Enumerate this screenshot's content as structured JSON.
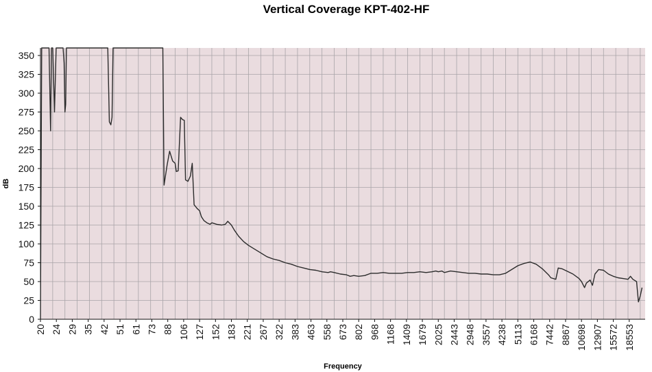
{
  "chart_data": {
    "type": "line",
    "title": "Vertical Coverage KPT-402-HF",
    "xlabel": "Frequency",
    "ylabel": "dB",
    "ylim": [
      0,
      360
    ],
    "yticks": [
      0,
      25,
      50,
      75,
      100,
      125,
      150,
      175,
      200,
      225,
      250,
      275,
      300,
      325,
      350
    ],
    "x_tick_labels": [
      "20",
      "24",
      "29",
      "35",
      "42",
      "51",
      "61",
      "73",
      "88",
      "106",
      "127",
      "152",
      "183",
      "221",
      "267",
      "322",
      "383",
      "463",
      "558",
      "673",
      "802",
      "968",
      "1168",
      "1409",
      "1679",
      "2025",
      "2443",
      "2948",
      "3557",
      "4238",
      "5113",
      "6168",
      "7442",
      "8867",
      "10698",
      "12907",
      "15572",
      "18553"
    ],
    "grid": true,
    "legend": "none",
    "colors": {
      "plot_background": "#eadcdf",
      "grid_line": "#a8a4a8",
      "line": "#2b2b2b",
      "axis": "#111111"
    },
    "series": [
      {
        "points": [
          [
            0,
            0
          ],
          [
            0.1,
            360
          ],
          [
            0.7,
            360
          ],
          [
            0.83,
            250
          ],
          [
            0.9,
            360
          ],
          [
            1.0,
            360
          ],
          [
            1.15,
            275
          ],
          [
            1.28,
            360
          ],
          [
            1.85,
            360
          ],
          [
            1.93,
            340
          ],
          [
            2.0,
            275
          ],
          [
            2.06,
            285
          ],
          [
            2.12,
            360
          ],
          [
            5.5,
            360
          ],
          [
            5.63,
            262
          ],
          [
            5.75,
            258
          ],
          [
            5.85,
            268
          ],
          [
            5.93,
            360
          ],
          [
            10.0,
            360
          ],
          [
            10.1,
            178
          ],
          [
            10.35,
            205
          ],
          [
            10.55,
            223
          ],
          [
            10.8,
            210
          ],
          [
            11.0,
            207
          ],
          [
            11.1,
            196
          ],
          [
            11.25,
            197
          ],
          [
            11.45,
            268
          ],
          [
            11.6,
            265
          ],
          [
            11.75,
            264
          ],
          [
            11.85,
            185
          ],
          [
            12.05,
            183
          ],
          [
            12.25,
            190
          ],
          [
            12.4,
            207
          ],
          [
            12.55,
            152
          ],
          [
            12.8,
            147
          ],
          [
            13.0,
            144
          ],
          [
            13.15,
            136
          ],
          [
            13.35,
            131
          ],
          [
            13.6,
            128
          ],
          [
            13.85,
            126
          ],
          [
            14.0,
            128
          ],
          [
            14.4,
            126
          ],
          [
            14.8,
            125
          ],
          [
            15.1,
            126
          ],
          [
            15.3,
            130
          ],
          [
            15.6,
            125
          ],
          [
            15.85,
            118
          ],
          [
            16.2,
            110
          ],
          [
            16.6,
            103
          ],
          [
            17.0,
            98
          ],
          [
            17.5,
            93
          ],
          [
            18.0,
            88
          ],
          [
            18.5,
            83
          ],
          [
            19.0,
            80
          ],
          [
            19.5,
            78
          ],
          [
            20.0,
            75
          ],
          [
            20.5,
            73
          ],
          [
            21.0,
            70
          ],
          [
            21.5,
            68
          ],
          [
            22.0,
            66
          ],
          [
            22.5,
            65
          ],
          [
            23.0,
            63
          ],
          [
            23.5,
            62
          ],
          [
            23.7,
            63
          ],
          [
            24.0,
            62
          ],
          [
            24.5,
            60
          ],
          [
            25.0,
            59
          ],
          [
            25.3,
            57
          ],
          [
            25.6,
            58
          ],
          [
            26.0,
            57
          ],
          [
            26.5,
            58
          ],
          [
            27.0,
            61
          ],
          [
            27.5,
            61
          ],
          [
            28.0,
            62
          ],
          [
            28.5,
            61
          ],
          [
            29.0,
            61
          ],
          [
            29.5,
            61
          ],
          [
            30.0,
            62
          ],
          [
            30.5,
            62
          ],
          [
            31.0,
            63
          ],
          [
            31.5,
            62
          ],
          [
            32.0,
            63
          ],
          [
            32.3,
            64
          ],
          [
            32.5,
            63
          ],
          [
            32.8,
            64
          ],
          [
            33.0,
            62
          ],
          [
            33.5,
            64
          ],
          [
            34.0,
            63
          ],
          [
            34.5,
            62
          ],
          [
            35.0,
            61
          ],
          [
            35.5,
            61
          ],
          [
            36.0,
            60
          ],
          [
            36.5,
            60
          ],
          [
            37.0,
            59
          ],
          [
            37.5,
            59
          ],
          [
            38.0,
            61
          ],
          [
            38.5,
            66
          ],
          [
            39.0,
            71
          ],
          [
            39.5,
            74
          ],
          [
            40.0,
            76
          ],
          [
            40.5,
            73
          ],
          [
            41.0,
            67
          ],
          [
            41.5,
            59
          ],
          [
            41.7,
            55
          ],
          [
            42.1,
            53
          ],
          [
            42.3,
            68
          ],
          [
            42.6,
            67
          ],
          [
            43.0,
            64
          ],
          [
            43.5,
            60
          ],
          [
            44.0,
            54
          ],
          [
            44.2,
            50
          ],
          [
            44.45,
            42
          ],
          [
            44.6,
            48
          ],
          [
            44.9,
            52
          ],
          [
            45.1,
            45
          ],
          [
            45.3,
            60
          ],
          [
            45.6,
            66
          ],
          [
            46.0,
            65
          ],
          [
            46.4,
            60
          ],
          [
            46.8,
            57
          ],
          [
            47.2,
            55
          ],
          [
            47.6,
            54
          ],
          [
            48.0,
            53
          ],
          [
            48.2,
            57
          ],
          [
            48.4,
            53
          ],
          [
            48.7,
            50
          ],
          [
            48.85,
            23
          ],
          [
            49.0,
            31
          ],
          [
            49.15,
            42
          ]
        ]
      }
    ]
  }
}
